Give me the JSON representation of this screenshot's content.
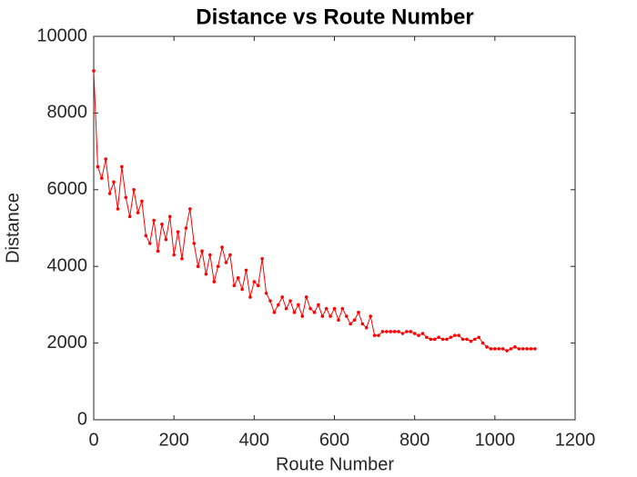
{
  "chart_data": {
    "type": "line",
    "title": "Distance vs Route Number",
    "xlabel": "Route Number",
    "ylabel": "Distance",
    "x": [
      0,
      10,
      20,
      30,
      40,
      50,
      60,
      70,
      80,
      90,
      100,
      110,
      120,
      130,
      140,
      150,
      160,
      170,
      180,
      190,
      200,
      210,
      220,
      230,
      240,
      250,
      260,
      270,
      280,
      290,
      300,
      310,
      320,
      330,
      340,
      350,
      360,
      370,
      380,
      390,
      400,
      410,
      420,
      430,
      440,
      450,
      460,
      470,
      480,
      490,
      500,
      510,
      520,
      530,
      540,
      550,
      560,
      570,
      580,
      590,
      600,
      610,
      620,
      630,
      640,
      650,
      660,
      670,
      680,
      690,
      700,
      710,
      720,
      730,
      740,
      750,
      760,
      770,
      780,
      790,
      800,
      810,
      820,
      830,
      840,
      850,
      860,
      870,
      880,
      890,
      900,
      910,
      920,
      930,
      940,
      950,
      960,
      970,
      980,
      990,
      1000,
      1010,
      1020,
      1030,
      1040,
      1050,
      1060,
      1070,
      1080,
      1090,
      1100
    ],
    "series": [
      {
        "name": "Distance",
        "color": "#ff0000",
        "values": [
          9100,
          6600,
          6300,
          6800,
          5900,
          6200,
          5500,
          6600,
          5800,
          5300,
          6000,
          5400,
          5700,
          4800,
          4600,
          5200,
          4400,
          5100,
          4700,
          5300,
          4300,
          4900,
          4200,
          5000,
          5500,
          4600,
          4000,
          4400,
          3800,
          4300,
          3600,
          4000,
          4500,
          4100,
          4300,
          3500,
          3700,
          3400,
          3900,
          3200,
          3600,
          3500,
          4200,
          3300,
          3100,
          2800,
          3000,
          3200,
          2900,
          3100,
          2800,
          3000,
          2700,
          3200,
          2900,
          2800,
          3000,
          2700,
          2900,
          2700,
          2900,
          2600,
          2900,
          2700,
          2500,
          2600,
          2800,
          2500,
          2400,
          2700,
          2200,
          2200,
          2300,
          2300,
          2300,
          2300,
          2300,
          2250,
          2300,
          2300,
          2250,
          2200,
          2250,
          2150,
          2100,
          2100,
          2150,
          2100,
          2100,
          2150,
          2200,
          2200,
          2100,
          2100,
          2050,
          2100,
          2150,
          2000,
          1900,
          1850,
          1850,
          1850,
          1850,
          1800,
          1850,
          1900,
          1850,
          1850,
          1850,
          1850,
          1850
        ]
      }
    ],
    "xlim": [
      0,
      1200
    ],
    "xticks": [
      0,
      200,
      400,
      600,
      800,
      1000,
      1200
    ],
    "ylim": [
      0,
      10000
    ],
    "yticks": [
      0,
      2000,
      4000,
      6000,
      8000,
      10000
    ]
  }
}
